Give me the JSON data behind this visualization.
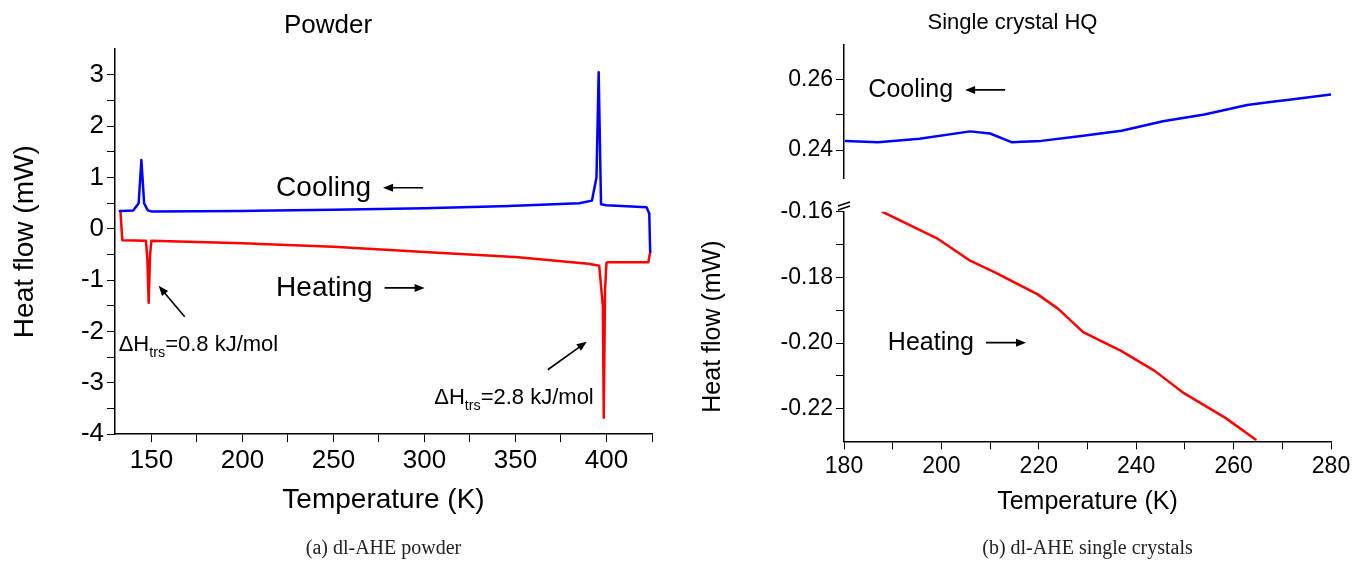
{
  "chart_data": [
    {
      "type": "line",
      "title": "Powder",
      "xlabel": "Temperature (K)",
      "ylabel": "Heat flow (mW)",
      "legend": false,
      "grid": false,
      "marker": "none",
      "line_style": "solid",
      "xlim": [
        130,
        425
      ],
      "xticks": [
        150,
        200,
        250,
        300,
        350,
        400,
        {
          "value": 175,
          "label": null
        },
        {
          "value": 225,
          "label": null
        },
        {
          "value": 275,
          "label": null
        },
        {
          "value": 325,
          "label": null
        },
        {
          "value": 375,
          "label": null
        },
        {
          "value": 425,
          "label": null
        }
      ],
      "ylim": [
        -4,
        3.5
      ],
      "yticks": [
        -4,
        -3,
        -2,
        -1,
        0,
        1,
        2,
        3,
        {
          "value": -3.5,
          "label": null
        },
        {
          "value": -2.5,
          "label": null
        },
        {
          "value": -1.5,
          "label": null
        },
        {
          "value": -0.5,
          "label": null
        },
        {
          "value": 0.5,
          "label": null
        },
        {
          "value": 1.5,
          "label": null
        },
        {
          "value": 2.5,
          "label": null
        }
      ],
      "series": [
        {
          "name": "Cooling",
          "color": "#0000ff",
          "x": [
            132.6,
            133.5,
            140,
            143,
            144.5,
            146,
            148,
            150,
            200,
            250,
            300,
            350,
            385,
            392,
            394.5,
            395.7,
            397,
            400,
            422,
            423.5,
            424
          ],
          "values": [
            0.35,
            0.35,
            0.36,
            0.5,
            1.34,
            0.5,
            0.36,
            0.34,
            0.35,
            0.37,
            0.4,
            0.45,
            0.5,
            0.55,
            1.0,
            3.05,
            0.48,
            0.46,
            0.42,
            0.3,
            -0.45
          ]
        },
        {
          "name": "Heating",
          "color": "#ff0000",
          "x": [
            133,
            134,
            147,
            147.8,
            148.5,
            149.3,
            150,
            200,
            250,
            300,
            350,
            390,
            396,
            398,
            398.5,
            399.2,
            400,
            401,
            423,
            424
          ],
          "values": [
            0.35,
            -0.22,
            -0.23,
            -0.6,
            -1.44,
            -0.5,
            -0.23,
            -0.28,
            -0.35,
            -0.45,
            -0.55,
            -0.68,
            -0.72,
            -1.5,
            -3.68,
            -1.2,
            -0.66,
            -0.65,
            -0.65,
            -0.45
          ]
        }
      ],
      "annotations": [
        {
          "text": "ΔH$_{trs}$=0.8 kJ/mol",
          "x": 148.5,
          "y": -1.44
        },
        {
          "text": "ΔH$_{trs}$=2.8 kJ/mol",
          "x": 398.5,
          "y": -3.68
        },
        "(a) dl-AHE powder"
      ]
    },
    {
      "type": "line",
      "title": "Single crystal HQ",
      "legend": false,
      "grid": false,
      "marker": "none",
      "line_style": "solid",
      "tick_labels": "y",
      "xlim": [
        180,
        280
      ],
      "xticks": [
        180,
        200,
        220,
        240,
        260,
        280
      ],
      "ylim": [
        0.232,
        0.27
      ],
      "yticks": [
        0.24,
        0.26,
        {
          "value": 0.25,
          "label": null
        }
      ],
      "series": [
        {
          "name": "Cooling",
          "color": "#0000ff",
          "x": [
            180.4,
            187,
            195.5,
            205.9,
            210,
            214.5,
            220.5,
            228.3,
            237,
            245.5,
            254,
            262.8,
            271.4,
            280
          ],
          "values": [
            0.2426,
            0.2422,
            0.2432,
            0.2453,
            0.2447,
            0.2422,
            0.2426,
            0.2439,
            0.2455,
            0.2482,
            0.2501,
            0.2528,
            0.2543,
            0.2558
          ]
        }
      ]
    },
    {
      "type": "line",
      "xlabel": "Temperature (K)",
      "ylabel": "Heat flow (mW)",
      "legend": false,
      "grid": false,
      "marker": "none",
      "line_style": "solid",
      "xlim": [
        180,
        280
      ],
      "xticks": [
        180,
        200,
        220,
        240,
        260,
        280,
        {
          "value": 190,
          "label": null
        },
        {
          "value": 210,
          "label": null
        },
        {
          "value": 230,
          "label": null
        },
        {
          "value": 250,
          "label": null
        },
        {
          "value": 270,
          "label": null
        }
      ],
      "ylim": [
        -0.23,
        -0.16
      ],
      "yticks": [
        -0.16,
        -0.18,
        {
          "value": -0.2,
          "label": "-0.20"
        },
        -0.22,
        {
          "value": -0.17,
          "label": null
        },
        {
          "value": -0.19,
          "label": null
        },
        {
          "value": -0.21,
          "label": null
        }
      ],
      "series": [
        {
          "name": "Heating",
          "color": "#ff0000",
          "x": [
            187.9,
            199,
            205.9,
            211,
            219.7,
            224,
            229.1,
            236.9,
            243.8,
            249.8,
            258.4,
            264.5
          ],
          "values": [
            -0.16,
            -0.168,
            -0.1749,
            -0.1785,
            -0.1851,
            -0.1896,
            -0.1967,
            -0.2024,
            -0.2085,
            -0.2153,
            -0.2229,
            -0.2294
          ]
        }
      ],
      "annotations": [
        "(b) dl-AHE single crystals"
      ]
    }
  ]
}
